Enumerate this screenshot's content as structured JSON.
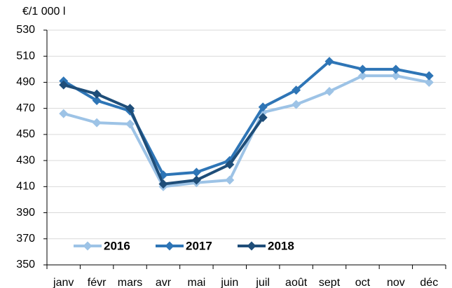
{
  "chart_data": {
    "type": "line",
    "y_axis_label": "€/1 000 l",
    "categories": [
      "janv",
      "févr",
      "mars",
      "avr",
      "mai",
      "juin",
      "juil",
      "août",
      "sept",
      "oct",
      "nov",
      "déc"
    ],
    "series": [
      {
        "name": "2016",
        "color": "#9dc3e6",
        "values": [
          466,
          459,
          458,
          410,
          413,
          415,
          467,
          473,
          483,
          495,
          495,
          490
        ]
      },
      {
        "name": "2017",
        "color": "#2e75b6",
        "values": [
          491,
          476,
          468,
          419,
          421,
          430,
          471,
          484,
          506,
          500,
          500,
          495
        ]
      },
      {
        "name": "2018",
        "color": "#1f4e79",
        "values": [
          488,
          481,
          470,
          412,
          415,
          427,
          463,
          null,
          null,
          null,
          null,
          null
        ]
      }
    ],
    "ylim": [
      350,
      530
    ],
    "yticks": [
      350,
      370,
      390,
      410,
      430,
      450,
      470,
      490,
      510,
      530
    ],
    "grid": true,
    "legend": "bottom-left"
  }
}
